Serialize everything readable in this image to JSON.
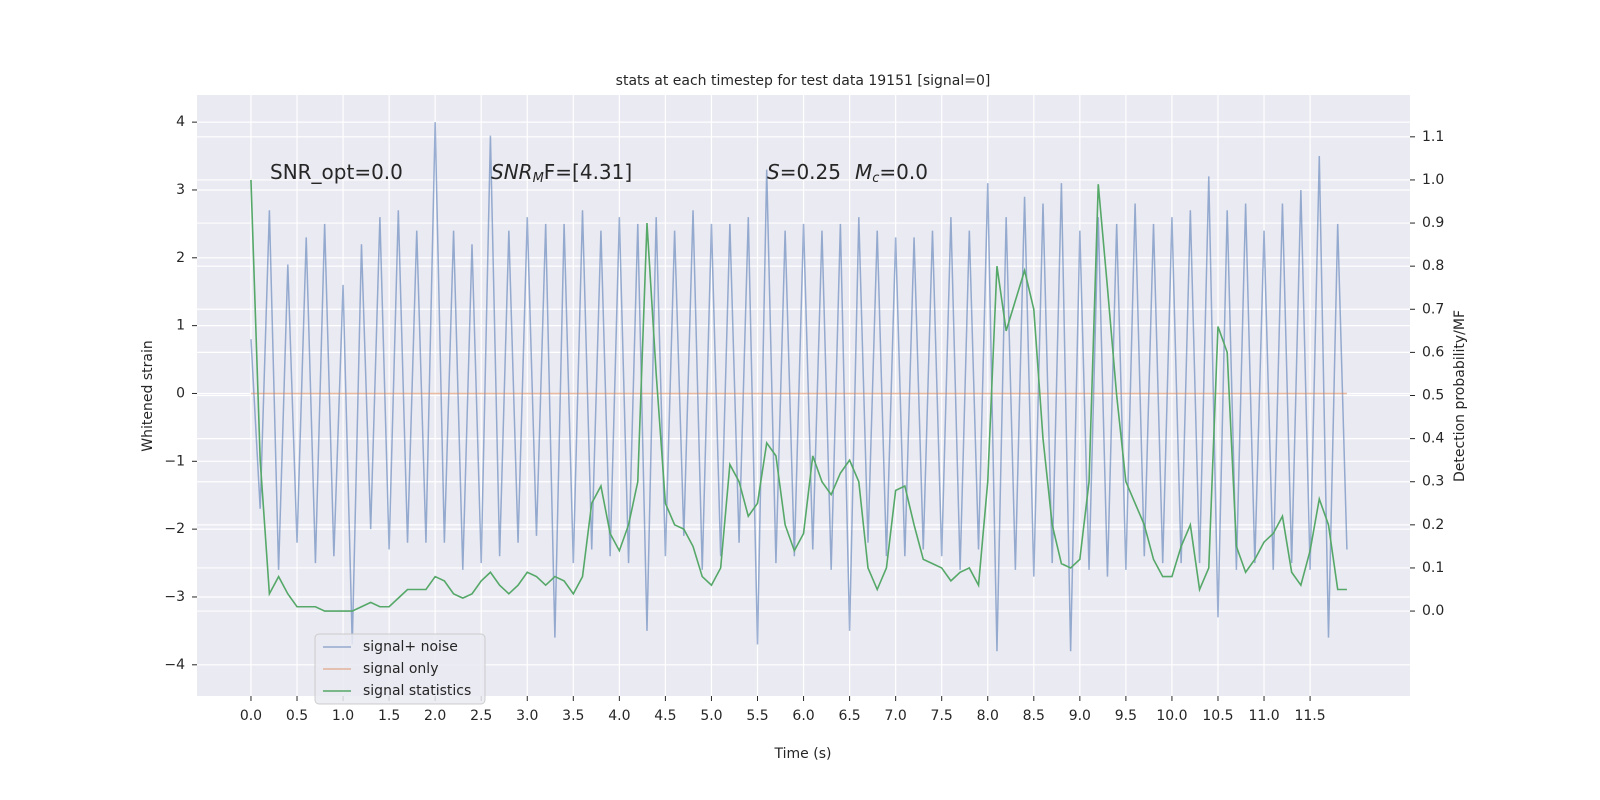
{
  "chart_data": {
    "type": "line",
    "title": "stats at each timestep for test data 19151 [signal=0]",
    "xlabel": "Time (s)",
    "ylabel": "Whitened strain",
    "y2label": "Detection probability/MF",
    "annotations": [
      [
        "SNR_opt=0.0"
      ],
      [
        "SNR",
        "M",
        "F=[4.31]"
      ],
      [
        "S",
        "=0.25",
        "M",
        "c",
        "=0.0"
      ]
    ],
    "x": [
      0,
      0.1,
      0.2,
      0.3,
      0.4,
      0.5,
      0.6,
      0.7,
      0.8,
      0.9,
      1,
      1.1,
      1.2,
      1.3,
      1.4,
      1.5,
      1.6,
      1.7,
      1.8,
      1.9,
      2,
      2.1,
      2.2,
      2.3,
      2.4,
      2.5,
      2.6,
      2.7,
      2.8,
      2.9,
      3,
      3.1,
      3.2,
      3.3,
      3.4,
      3.5,
      3.6,
      3.7,
      3.8,
      3.9,
      4,
      4.1,
      4.2,
      4.3,
      4.4,
      4.5,
      4.6,
      4.7,
      4.8,
      4.9,
      5,
      5.1,
      5.2,
      5.3,
      5.4,
      5.5,
      5.6,
      5.7,
      5.8,
      5.9,
      6,
      6.1,
      6.2,
      6.3,
      6.4,
      6.5,
      6.6,
      6.7,
      6.8,
      6.9,
      7,
      7.1,
      7.2,
      7.3,
      7.4,
      7.5,
      7.6,
      7.7,
      7.8,
      7.9,
      8,
      8.1,
      8.2,
      8.3,
      8.4,
      8.5,
      8.6,
      8.7,
      8.8,
      8.9,
      9,
      9.1,
      9.2,
      9.3,
      9.4,
      9.5,
      9.6,
      9.7,
      9.8,
      9.9,
      10,
      10.1,
      10.2,
      10.3,
      10.4,
      10.5,
      10.6,
      10.7,
      10.8,
      10.9,
      11,
      11.1,
      11.2,
      11.3,
      11.4,
      11.5,
      11.6,
      11.7,
      11.8,
      11.9
    ],
    "series": [
      {
        "name": "signal+ noise",
        "color": "#4c72b0",
        "values": [
          0.8,
          -1.7,
          2.7,
          -2.6,
          1.9,
          -2.2,
          2.3,
          -2.5,
          2.5,
          -2.4,
          1.6,
          -3.7,
          2.2,
          -2.0,
          2.6,
          -2.3,
          2.7,
          -2.2,
          2.4,
          -2.2,
          4.0,
          -2.2,
          2.4,
          -2.6,
          2.2,
          -2.5,
          3.8,
          -2.4,
          2.4,
          -2.2,
          2.6,
          -2.1,
          2.5,
          -3.6,
          2.5,
          -2.5,
          2.7,
          -2.3,
          2.4,
          -2.4,
          2.6,
          -2.5,
          2.5,
          -3.5,
          2.6,
          -2.4,
          2.4,
          -2.1,
          2.7,
          -2.6,
          2.5,
          -2.4,
          2.5,
          -2.2,
          2.6,
          -3.7,
          3.3,
          -2.5,
          2.4,
          -2.4,
          2.5,
          -2.3,
          2.4,
          -2.6,
          2.5,
          -3.5,
          2.6,
          -2.2,
          2.4,
          -2.4,
          2.3,
          -2.4,
          2.3,
          -2.3,
          2.4,
          -2.4,
          2.6,
          -2.6,
          2.4,
          -2.3,
          3.1,
          -3.8,
          2.6,
          -2.6,
          2.9,
          -2.7,
          2.8,
          -2.5,
          3.1,
          -3.8,
          2.4,
          -2.6,
          2.6,
          -2.7,
          2.5,
          -2.6,
          2.8,
          -2.4,
          2.5,
          -2.5,
          2.6,
          -2.5,
          2.7,
          -2.5,
          3.2,
          -3.3,
          2.7,
          -2.6,
          2.8,
          -2.5,
          2.4,
          -2.6,
          2.8,
          -2.5,
          3.0,
          -2.6,
          3.5,
          -3.6,
          2.5,
          -2.3
        ]
      },
      {
        "name": "signal only",
        "color": "#dd8452",
        "values": [
          0,
          0,
          0,
          0,
          0,
          0,
          0,
          0,
          0,
          0,
          0,
          0,
          0,
          0,
          0,
          0,
          0,
          0,
          0,
          0,
          0,
          0,
          0,
          0,
          0,
          0,
          0,
          0,
          0,
          0,
          0,
          0,
          0,
          0,
          0,
          0,
          0,
          0,
          0,
          0,
          0,
          0,
          0,
          0,
          0,
          0,
          0,
          0,
          0,
          0,
          0,
          0,
          0,
          0,
          0,
          0,
          0,
          0,
          0,
          0,
          0,
          0,
          0,
          0,
          0,
          0,
          0,
          0,
          0,
          0,
          0,
          0,
          0,
          0,
          0,
          0,
          0,
          0,
          0,
          0,
          0,
          0,
          0,
          0,
          0,
          0,
          0,
          0,
          0,
          0,
          0,
          0,
          0,
          0,
          0,
          0,
          0,
          0,
          0,
          0,
          0,
          0,
          0,
          0,
          0,
          0,
          0,
          0,
          0,
          0,
          0,
          0,
          0,
          0,
          0,
          0,
          0,
          0,
          0,
          0
        ]
      },
      {
        "name": "signal statistics",
        "color": "#55a868",
        "axis": "y2",
        "values": [
          1.0,
          0.35,
          0.04,
          0.08,
          0.04,
          0.01,
          0.01,
          0.01,
          0.0,
          0.0,
          0.0,
          0.0,
          0.01,
          0.02,
          0.01,
          0.01,
          0.03,
          0.05,
          0.05,
          0.05,
          0.08,
          0.07,
          0.04,
          0.03,
          0.04,
          0.07,
          0.09,
          0.06,
          0.04,
          0.06,
          0.09,
          0.08,
          0.06,
          0.08,
          0.07,
          0.04,
          0.08,
          0.25,
          0.29,
          0.18,
          0.14,
          0.2,
          0.3,
          0.9,
          0.55,
          0.25,
          0.2,
          0.19,
          0.15,
          0.08,
          0.06,
          0.1,
          0.34,
          0.3,
          0.22,
          0.25,
          0.39,
          0.36,
          0.2,
          0.14,
          0.18,
          0.36,
          0.3,
          0.27,
          0.32,
          0.35,
          0.3,
          0.1,
          0.05,
          0.1,
          0.28,
          0.29,
          0.2,
          0.12,
          0.11,
          0.1,
          0.07,
          0.09,
          0.1,
          0.06,
          0.3,
          0.8,
          0.65,
          0.72,
          0.79,
          0.7,
          0.4,
          0.2,
          0.11,
          0.1,
          0.12,
          0.3,
          0.99,
          0.75,
          0.5,
          0.3,
          0.25,
          0.2,
          0.12,
          0.08,
          0.08,
          0.15,
          0.2,
          0.05,
          0.1,
          0.66,
          0.6,
          0.15,
          0.09,
          0.12,
          0.16,
          0.18,
          0.22,
          0.09,
          0.06,
          0.14,
          0.26,
          0.2,
          0.05,
          0.05
        ]
      }
    ],
    "xlim": [
      -0.586,
      12.585
    ],
    "ylim": [
      -4.46,
      4.4
    ],
    "y2lim": [
      -0.197,
      1.197
    ],
    "xticks": [
      {
        "value": 0,
        "label": "0.0"
      },
      {
        "value": 0.5,
        "label": "0.5"
      },
      {
        "value": 1,
        "label": "1.0"
      },
      {
        "value": 1.5,
        "label": "1.5"
      },
      {
        "value": 2,
        "label": "2.0"
      },
      {
        "value": 2.5,
        "label": "2.5"
      },
      {
        "value": 3,
        "label": "3.0"
      },
      {
        "value": 3.5,
        "label": "3.5"
      },
      {
        "value": 4,
        "label": "4.0"
      },
      {
        "value": 4.5,
        "label": "4.5"
      },
      {
        "value": 5,
        "label": "5.0"
      },
      {
        "value": 5.5,
        "label": "5.5"
      },
      {
        "value": 6,
        "label": "6.0"
      },
      {
        "value": 6.5,
        "label": "6.5"
      },
      {
        "value": 7,
        "label": "7.0"
      },
      {
        "value": 7.5,
        "label": "7.5"
      },
      {
        "value": 8,
        "label": "8.0"
      },
      {
        "value": 8.5,
        "label": "8.5"
      },
      {
        "value": 9,
        "label": "9.0"
      },
      {
        "value": 9.5,
        "label": "9.5"
      },
      {
        "value": 10,
        "label": "10.0"
      },
      {
        "value": 10.5,
        "label": "10.5"
      },
      {
        "value": 11,
        "label": "11.0"
      },
      {
        "value": 11.5,
        "label": "11.5"
      }
    ],
    "yticks": [
      {
        "value": -4,
        "label": "−4"
      },
      {
        "value": -3,
        "label": "−3"
      },
      {
        "value": -2,
        "label": "−2"
      },
      {
        "value": -1,
        "label": "−1"
      },
      0,
      1,
      2,
      3,
      4
    ],
    "y2ticks": [
      {
        "value": 0,
        "label": "0.0"
      },
      {
        "value": 0.1,
        "label": "0.1"
      },
      {
        "value": 0.2,
        "label": "0.2"
      },
      {
        "value": 0.3,
        "label": "0.3"
      },
      {
        "value": 0.4,
        "label": "0.4"
      },
      {
        "value": 0.5,
        "label": "0.5"
      },
      {
        "value": 0.6,
        "label": "0.6"
      },
      {
        "value": 0.7,
        "label": "0.7"
      },
      {
        "value": 0.8,
        "label": "0.8"
      },
      {
        "value": 0.9,
        "label": "0.9"
      },
      {
        "value": 1.0,
        "label": "1.0"
      },
      {
        "value": 1.1,
        "label": "1.1"
      }
    ],
    "grid": true,
    "legend": "lower left"
  }
}
